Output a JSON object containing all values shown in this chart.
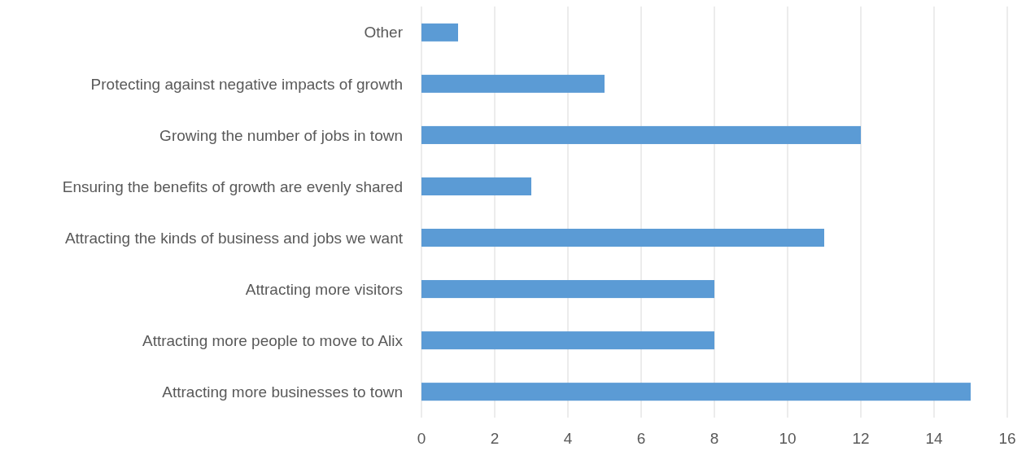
{
  "chart_data": {
    "type": "bar",
    "orientation": "horizontal",
    "categories": [
      "Other",
      "Protecting against negative impacts of growth",
      "Growing the number of jobs in town",
      "Ensuring the benefits of growth are evenly shared",
      "Attracting the kinds of business and jobs we want",
      "Attracting more visitors",
      "Attracting more people to move to Alix",
      "Attracting more businesses to town"
    ],
    "values": [
      1,
      5,
      12,
      3,
      11,
      8,
      8,
      15
    ],
    "color": "#5b9bd5",
    "xlim": [
      0,
      16
    ],
    "xticks": [
      0,
      2,
      4,
      6,
      8,
      10,
      12,
      14,
      16
    ],
    "grid": "x"
  }
}
